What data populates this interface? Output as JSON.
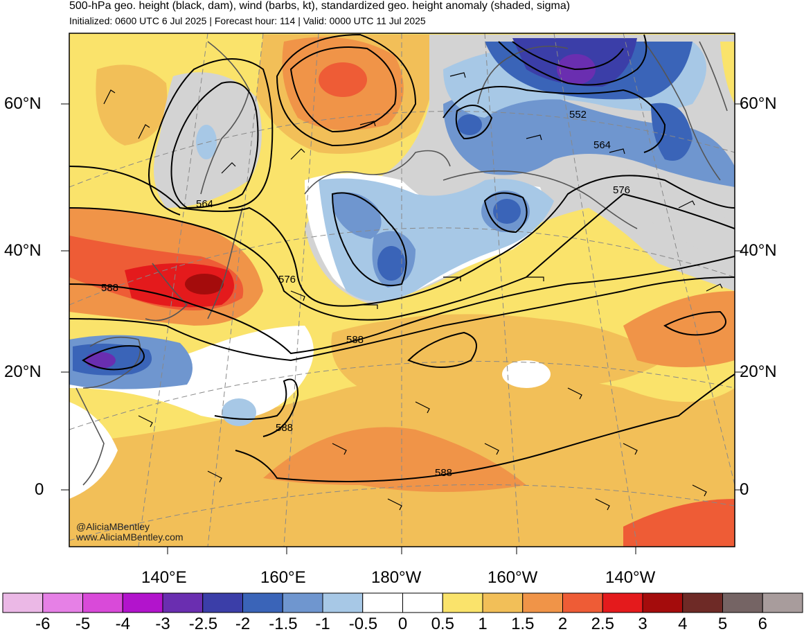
{
  "header": {
    "title": "500-hPa geo. height (black, dam), wind (barbs, kt), standardized geo. height anomaly (shaded, sigma)",
    "subtitle": "Initialized: 0600 UTC 6 Jul 2025 | Forecast hour: 114 | Valid: 0000 UTC 11 Jul 2025"
  },
  "lat_labels": [
    "60°N",
    "40°N",
    "20°N",
    "0"
  ],
  "lon_labels": [
    "140°E",
    "160°E",
    "180°W",
    "160°W",
    "140°W"
  ],
  "contour_labels": [
    "552",
    "564",
    "576",
    "564",
    "588",
    "576",
    "588",
    "588",
    "588"
  ],
  "credits": {
    "handle": "@AliciaMBentley",
    "site": "www.AliciaMBentley.com"
  },
  "colorbar": {
    "tick_labels": [
      "-6",
      "-5",
      "-4",
      "-3",
      "-2.5",
      "-2",
      "-1.5",
      "-1",
      "-0.5",
      "0",
      "0.5",
      "1",
      "1.5",
      "2",
      "2.5",
      "3",
      "4",
      "5",
      "6"
    ],
    "colors": [
      "#ebb8e6",
      "#e680e6",
      "#d94ad9",
      "#b214cc",
      "#6a2eb0",
      "#3b3ea8",
      "#3a64b8",
      "#6f96cf",
      "#a7c8e6",
      "#ffffff",
      "#ffffff",
      "#fae36b",
      "#f2bf58",
      "#f09448",
      "#ee5c36",
      "#e41a1c",
      "#a40c0c",
      "#6e2a26",
      "#756464",
      "#a89c9c"
    ]
  },
  "colors": {
    "land_outline": "#555555",
    "contour": "#000000",
    "graticule": "#888888"
  }
}
